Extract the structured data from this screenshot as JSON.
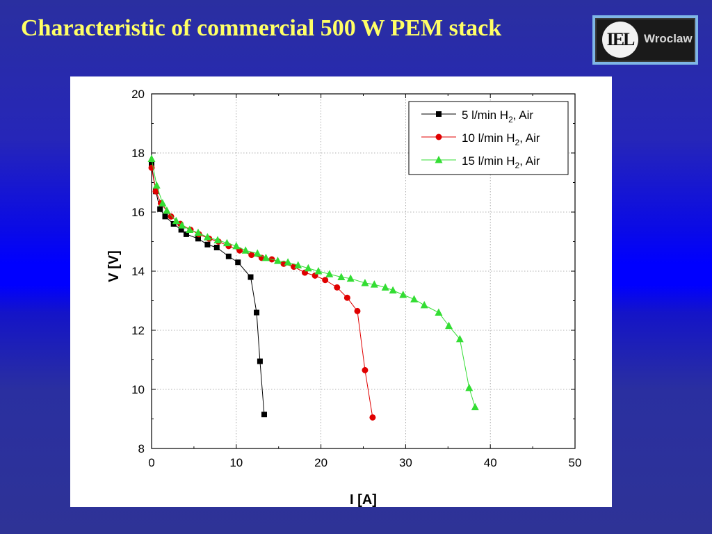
{
  "slide": {
    "title": "Characteristic of commercial 500 W PEM stack",
    "logo_text": "Wroclaw",
    "logo_emblem": "IEL"
  },
  "chart_data": {
    "type": "line",
    "xlabel": "I [A]",
    "ylabel": "V [V]",
    "xlim": [
      0,
      50
    ],
    "ylim": [
      8,
      20
    ],
    "xticks": [
      0,
      10,
      20,
      30,
      40,
      50
    ],
    "yticks": [
      8,
      10,
      12,
      14,
      16,
      18,
      20
    ],
    "grid": true,
    "legend_position": "top-right",
    "series": [
      {
        "name": "5 l/min H2, Air",
        "label_parts": [
          "5 l/min H",
          "2",
          ", Air"
        ],
        "color": "#000000",
        "marker": "square",
        "points": [
          [
            0.0,
            17.6
          ],
          [
            0.5,
            16.7
          ],
          [
            1.0,
            16.1
          ],
          [
            1.6,
            15.85
          ],
          [
            2.6,
            15.6
          ],
          [
            3.5,
            15.4
          ],
          [
            4.1,
            15.25
          ],
          [
            5.5,
            15.1
          ],
          [
            6.6,
            14.9
          ],
          [
            7.7,
            14.8
          ],
          [
            9.1,
            14.5
          ],
          [
            10.2,
            14.3
          ],
          [
            11.7,
            13.8
          ],
          [
            12.4,
            12.6
          ],
          [
            12.8,
            10.95
          ],
          [
            13.3,
            9.15
          ]
        ]
      },
      {
        "name": "10 l/min H2, Air",
        "label_parts": [
          "10 l/min H",
          "2",
          ", Air"
        ],
        "color": "#e00000",
        "marker": "circle",
        "points": [
          [
            0.0,
            17.5
          ],
          [
            0.5,
            16.7
          ],
          [
            1.1,
            16.3
          ],
          [
            2.3,
            15.85
          ],
          [
            3.4,
            15.6
          ],
          [
            4.6,
            15.4
          ],
          [
            5.6,
            15.25
          ],
          [
            6.8,
            15.1
          ],
          [
            7.9,
            15.0
          ],
          [
            9.1,
            14.85
          ],
          [
            10.4,
            14.7
          ],
          [
            11.8,
            14.55
          ],
          [
            13.0,
            14.45
          ],
          [
            14.2,
            14.4
          ],
          [
            15.6,
            14.25
          ],
          [
            16.8,
            14.15
          ],
          [
            18.1,
            13.95
          ],
          [
            19.3,
            13.85
          ],
          [
            20.5,
            13.7
          ],
          [
            21.9,
            13.45
          ],
          [
            23.1,
            13.1
          ],
          [
            24.3,
            12.65
          ],
          [
            25.2,
            10.65
          ],
          [
            26.1,
            9.05
          ]
        ]
      },
      {
        "name": "15 l/min H2, Air",
        "label_parts": [
          "15 l/min H",
          "2",
          ", Air"
        ],
        "color": "#33dd33",
        "marker": "triangle",
        "points": [
          [
            0.0,
            17.8
          ],
          [
            0.6,
            16.9
          ],
          [
            1.3,
            16.3
          ],
          [
            1.8,
            16.05
          ],
          [
            2.9,
            15.7
          ],
          [
            3.6,
            15.55
          ],
          [
            4.5,
            15.4
          ],
          [
            5.5,
            15.3
          ],
          [
            6.6,
            15.15
          ],
          [
            7.8,
            15.05
          ],
          [
            8.9,
            14.95
          ],
          [
            10.0,
            14.85
          ],
          [
            11.1,
            14.7
          ],
          [
            12.5,
            14.6
          ],
          [
            13.5,
            14.45
          ],
          [
            14.9,
            14.35
          ],
          [
            16.1,
            14.3
          ],
          [
            17.3,
            14.2
          ],
          [
            18.5,
            14.1
          ],
          [
            19.7,
            14.0
          ],
          [
            21.0,
            13.9
          ],
          [
            22.4,
            13.8
          ],
          [
            23.5,
            13.75
          ],
          [
            25.2,
            13.6
          ],
          [
            26.3,
            13.55
          ],
          [
            27.6,
            13.45
          ],
          [
            28.5,
            13.35
          ],
          [
            29.7,
            13.2
          ],
          [
            31.0,
            13.05
          ],
          [
            32.2,
            12.85
          ],
          [
            33.9,
            12.6
          ],
          [
            35.1,
            12.15
          ],
          [
            36.4,
            11.7
          ],
          [
            37.5,
            10.05
          ],
          [
            38.2,
            9.4
          ]
        ]
      }
    ]
  }
}
